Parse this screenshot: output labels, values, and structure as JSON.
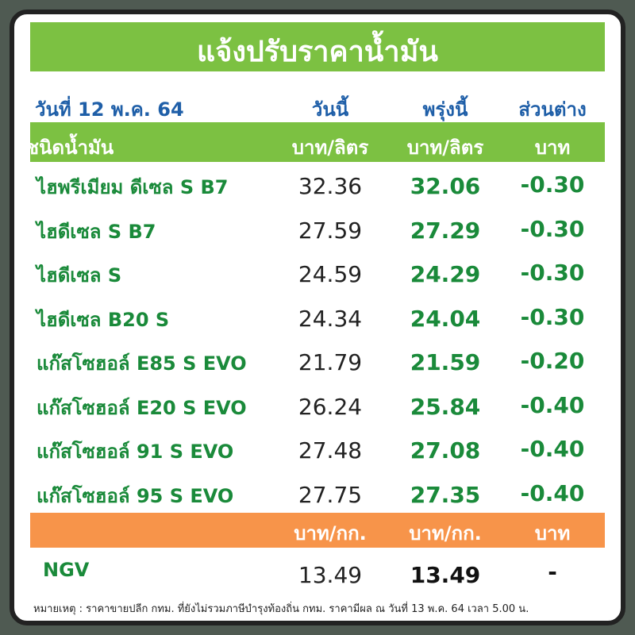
{
  "header": {
    "title": "แจ้งปรับราคาน้ำมัน"
  },
  "subheader": {
    "date": "วันที่ 12 พ.ค. 64",
    "today": "วันนี้",
    "tomorrow": "พรุ่งนี้",
    "diff": "ส่วนต่าง"
  },
  "column_header": [
    "ชนิดน้ำมัน",
    "บาท/ลิตร",
    "บาท/ลิตร",
    "บาท"
  ],
  "table": {
    "rows": [
      [
        "ไฮพรีเมียม ดีเซล S B7",
        "32.36",
        "32.06",
        "-0.30"
      ],
      [
        "ไฮดีเซล S B7",
        "27.59",
        "27.29",
        "-0.30"
      ],
      [
        "ไฮดีเซล S",
        "24.59",
        "24.29",
        "-0.30"
      ],
      [
        "ไฮดีเซล B20 S",
        "24.34",
        "24.04",
        "-0.30"
      ],
      [
        "แก๊สโซฮอล์ E85 S EVO",
        "21.79",
        "21.59",
        "-0.20"
      ],
      [
        "แก๊สโซฮอล์ E20 S EVO",
        "26.24",
        "25.84",
        "-0.40"
      ],
      [
        "แก๊สโซฮอล์ 91 S EVO",
        "27.48",
        "27.08",
        "-0.40"
      ],
      [
        "แก๊สโซฮอล์ 95 S EVO",
        "27.75",
        "27.35",
        "-0.40"
      ]
    ]
  },
  "gas_header": [
    "บาท/กก.",
    "บาท/กก.",
    "บาท"
  ],
  "gas_row": [
    "NGV",
    "13.49",
    "13.49",
    "-"
  ],
  "footnote": "หมายเหตุ : ราคาขายปลีก กทม. ที่ยังไม่รวมภาษีบำรุงท้องถิ่น กทม. ราคามีผล ณ วันที่ 13 พ.ค. 64 เวลา 5.00 น."
}
